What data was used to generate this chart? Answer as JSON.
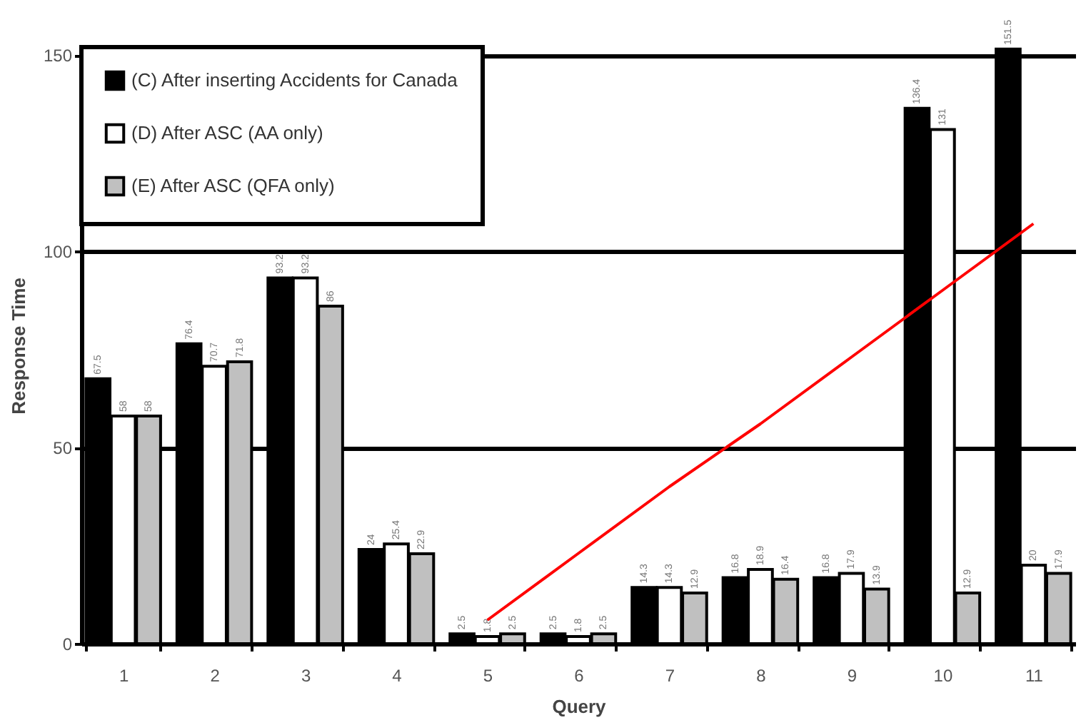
{
  "chart_data": {
    "type": "bar",
    "xlabel": "Query",
    "ylabel": "Response Time",
    "categories": [
      "1",
      "2",
      "3",
      "4",
      "5",
      "6",
      "7",
      "8",
      "9",
      "10",
      "11"
    ],
    "series": [
      {
        "name": "(C) After inserting Accidents for Canada",
        "color": "#000000",
        "values": [
          67.5,
          76.4,
          93.2,
          24,
          2.5,
          2.5,
          14.3,
          16.8,
          16.8,
          136.4,
          151.5
        ],
        "value_labels": [
          "67.5",
          "76.4",
          "93.2",
          "24",
          "2.5",
          "2.5",
          "14.3",
          "16.8",
          "16.8",
          "136.4",
          "151.5"
        ]
      },
      {
        "name": "(D) After ASC (AA only)",
        "color": "#ffffff",
        "values": [
          58,
          70.7,
          93.2,
          25.4,
          1.8,
          1.8,
          14.3,
          18.9,
          17.9,
          131,
          20
        ],
        "value_labels": [
          "58",
          "70.7",
          "93.2",
          "25.4",
          "1.8",
          "1.8",
          "14.3",
          "18.9",
          "17.9",
          "131",
          "20"
        ]
      },
      {
        "name": "(E) After ASC (QFA only)",
        "color": "#c0c0c0",
        "values": [
          58,
          71.8,
          86,
          22.9,
          2.5,
          2.5,
          12.9,
          16.4,
          13.9,
          12.9,
          17.9
        ],
        "value_labels": [
          "58",
          "71.8",
          "86",
          "22.9",
          "2.5",
          "2.5",
          "12.9",
          "16.4",
          "13.9",
          "12.9",
          "17.9"
        ]
      },
      {
        "type": "line",
        "color": "#ff0000",
        "values": [
          null,
          null,
          null,
          null,
          6,
          23,
          40,
          56,
          73,
          90,
          107
        ]
      }
    ],
    "ylim": [
      0,
      152
    ],
    "yticks": [
      0,
      50,
      100,
      150
    ],
    "grid": "y",
    "legend": "top left"
  }
}
